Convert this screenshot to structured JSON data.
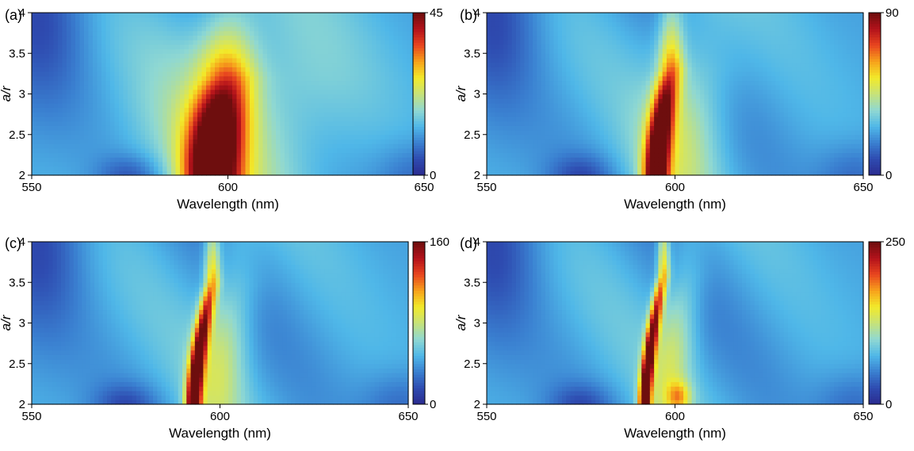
{
  "chart_data": [
    {
      "type": "heatmap",
      "panel_label": "(a)",
      "xlabel": "Wavelength (nm)",
      "ylabel": "a/r",
      "xlim": [
        550,
        650
      ],
      "ylim": [
        2,
        4
      ],
      "x_ticks": [
        "550",
        "600",
        "650"
      ],
      "y_ticks": [
        "2",
        "2.5",
        "3",
        "3.5",
        "4"
      ],
      "colorbar": {
        "min": 0,
        "max": 45,
        "tick_labels": [
          "0",
          "45"
        ]
      },
      "features": [
        {
          "kind": "resonance_lobe",
          "x_at_ymin": 596,
          "x_at_ymax": 600,
          "y_extent": 3.2,
          "peak_value": 45,
          "width_nm": 7
        }
      ]
    },
    {
      "type": "heatmap",
      "panel_label": "(b)",
      "xlabel": "Wavelength (nm)",
      "ylabel": "a/r",
      "xlim": [
        550,
        650
      ],
      "ylim": [
        2,
        4
      ],
      "x_ticks": [
        "550",
        "600",
        "650"
      ],
      "y_ticks": [
        "2",
        "2.5",
        "3",
        "3.5",
        "4"
      ],
      "colorbar": {
        "min": 0,
        "max": 90,
        "tick_labels": [
          "0",
          "90"
        ]
      },
      "features": [
        {
          "kind": "resonance_curve",
          "x_at_ymin": 595,
          "x_at_ymax": 599,
          "y_extent": 3.3,
          "peak_value": 90,
          "width_nm": 3.2
        }
      ]
    },
    {
      "type": "heatmap",
      "panel_label": "(c)",
      "xlabel": "Wavelength (nm)",
      "ylabel": "a/r",
      "xlim": [
        550,
        650
      ],
      "ylim": [
        2,
        4
      ],
      "x_ticks": [
        "550",
        "600",
        "650"
      ],
      "y_ticks": [
        "2",
        "2.5",
        "3",
        "3.5",
        "4"
      ],
      "colorbar": {
        "min": 0,
        "max": 160,
        "tick_labels": [
          "0",
          "160"
        ]
      },
      "features": [
        {
          "kind": "resonance_curve",
          "x_at_ymin": 593,
          "x_at_ymax": 598,
          "y_extent": 3.5,
          "peak_value": 160,
          "width_nm": 2.0
        }
      ]
    },
    {
      "type": "heatmap",
      "panel_label": "(d)",
      "xlabel": "Wavelength (nm)",
      "ylabel": "a/r",
      "xlim": [
        550,
        650
      ],
      "ylim": [
        2,
        4
      ],
      "x_ticks": [
        "550",
        "600",
        "650"
      ],
      "y_ticks": [
        "2",
        "2.5",
        "3",
        "3.5",
        "4"
      ],
      "colorbar": {
        "min": 0,
        "max": 250,
        "tick_labels": [
          "0",
          "250"
        ]
      },
      "features": [
        {
          "kind": "resonance_curve",
          "x_at_ymin": 592,
          "x_at_ymax": 597,
          "y_extent": 3.6,
          "peak_value": 250,
          "width_nm": 1.6
        },
        {
          "kind": "secondary_spot",
          "x": 601,
          "y": 2.1,
          "peak_value": 130
        }
      ]
    }
  ],
  "colors": {
    "colormap": [
      "#2b2b8f",
      "#2e4bb0",
      "#3a7fd0",
      "#4fb7e8",
      "#8fd8d2",
      "#c6e27a",
      "#f2ea2a",
      "#f7a21b",
      "#e8451f",
      "#b3121b",
      "#6e0e0e"
    ],
    "background": "#ffffff",
    "text": "#000000"
  }
}
